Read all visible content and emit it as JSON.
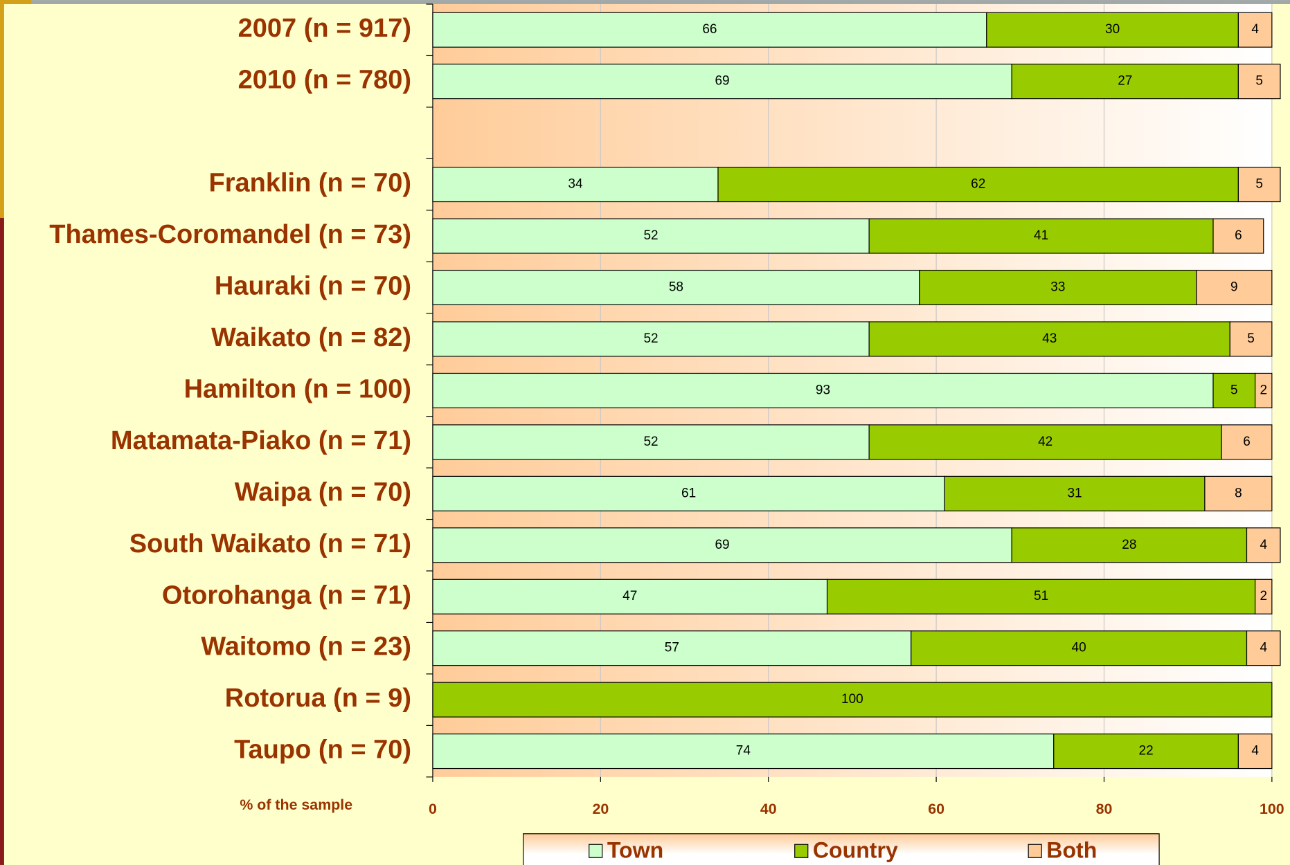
{
  "chart_data": {
    "type": "stacked-barh",
    "categories": [
      "2007 (n = 917)",
      "2010 (n = 780)",
      null,
      "Franklin (n = 70)",
      "Thames-Coromandel (n = 73)",
      "Hauraki (n = 70)",
      "Waikato (n = 82)",
      "Hamilton (n = 100)",
      "Matamata-Piako (n = 71)",
      "Waipa (n = 70)",
      "South Waikato (n = 71)",
      "Otorohanga (n = 71)",
      "Waitomo (n = 23)",
      "Rotorua (n = 9)",
      "Taupo (n = 70)"
    ],
    "series": [
      {
        "name": "Town",
        "color": "#ccffcc",
        "values": [
          66,
          69,
          null,
          34,
          52,
          58,
          52,
          93,
          52,
          61,
          69,
          47,
          57,
          0,
          74
        ]
      },
      {
        "name": "Country",
        "color": "#99cc00",
        "values": [
          30,
          27,
          null,
          62,
          41,
          33,
          43,
          5,
          42,
          31,
          28,
          51,
          40,
          100,
          22
        ]
      },
      {
        "name": "Both",
        "color": "#ffcc99",
        "values": [
          4,
          5,
          null,
          5,
          6,
          9,
          5,
          2,
          6,
          8,
          4,
          2,
          4,
          0,
          4
        ]
      }
    ],
    "x_label": "% of the sample",
    "xlim": [
      0,
      100
    ],
    "xticks": [
      0,
      20,
      40,
      60,
      80,
      100
    ],
    "grid": true,
    "legend": "bottom"
  }
}
